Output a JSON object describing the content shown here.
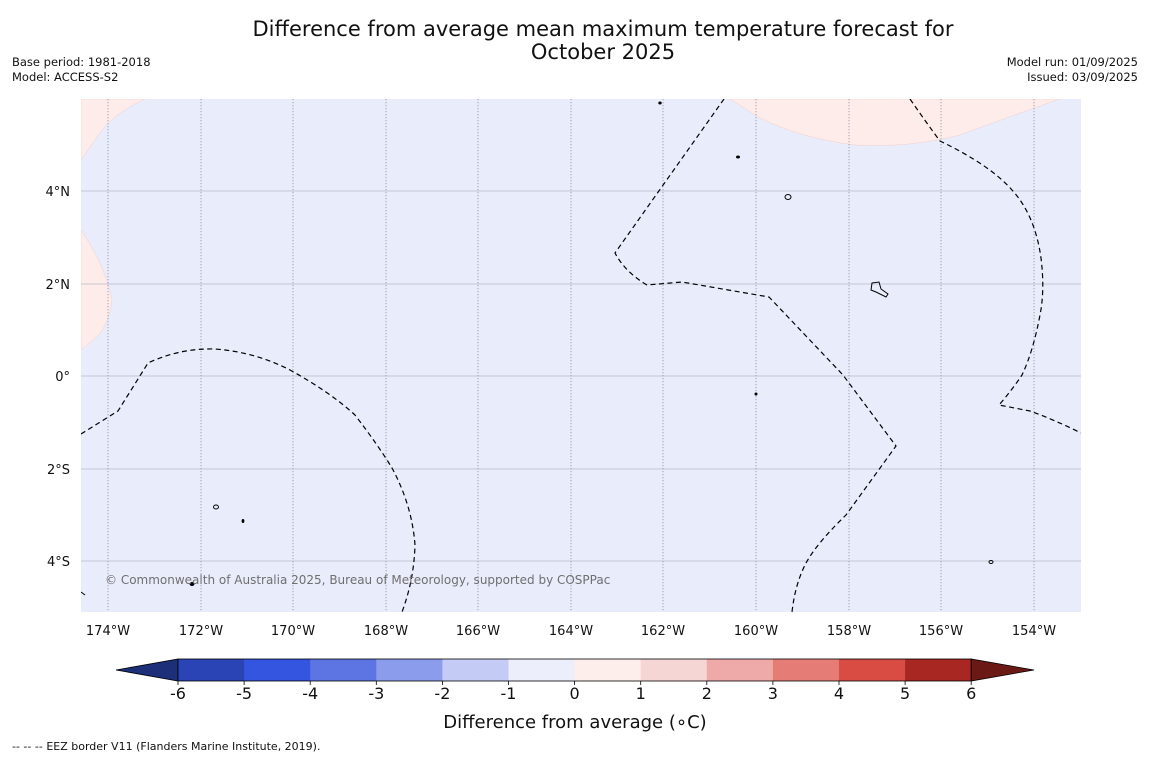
{
  "title": {
    "line1": "Difference from average mean maximum temperature forecast for",
    "line2": "October 2025"
  },
  "meta_left": {
    "base_period": "Base period: 1981-2018",
    "model": "Model: ACCESS-S2"
  },
  "meta_right": {
    "model_run": "Model run: 01/09/2025",
    "issued": "Issued: 03/09/2025"
  },
  "map": {
    "background_color": "#e9ecfb",
    "warm_color": "#fdecea",
    "lon_labels": [
      "174°W",
      "172°W",
      "170°W",
      "168°W",
      "166°W",
      "164°W",
      "162°W",
      "160°W",
      "158°W",
      "156°W",
      "154°W"
    ],
    "lat_labels": [
      "4°N",
      "2°N",
      "0°",
      "2°S",
      "4°S"
    ],
    "copyright": "© Commonwealth of Australia 2025, Bureau of Meteorology, supported by COSPPac"
  },
  "colorbar": {
    "colors": [
      "#1e2f7a",
      "#2a44b5",
      "#3355e0",
      "#5c75e3",
      "#8a9ceb",
      "#c4cbf5",
      "#eceefb",
      "#fdeeeb",
      "#f5d6d4",
      "#eeaaa8",
      "#e57c76",
      "#d94c43",
      "#a92722",
      "#6b1915"
    ],
    "tick_labels": [
      "-6",
      "-5",
      "-4",
      "-3",
      "-2",
      "-1",
      "0",
      "1",
      "2",
      "3",
      "4",
      "5",
      "6"
    ],
    "label": "Difference from average (∘C)"
  },
  "footer": {
    "legend_dashes": "--  --  --",
    "text": "EEZ border V11 (Flanders Marine Institute, 2019)."
  }
}
